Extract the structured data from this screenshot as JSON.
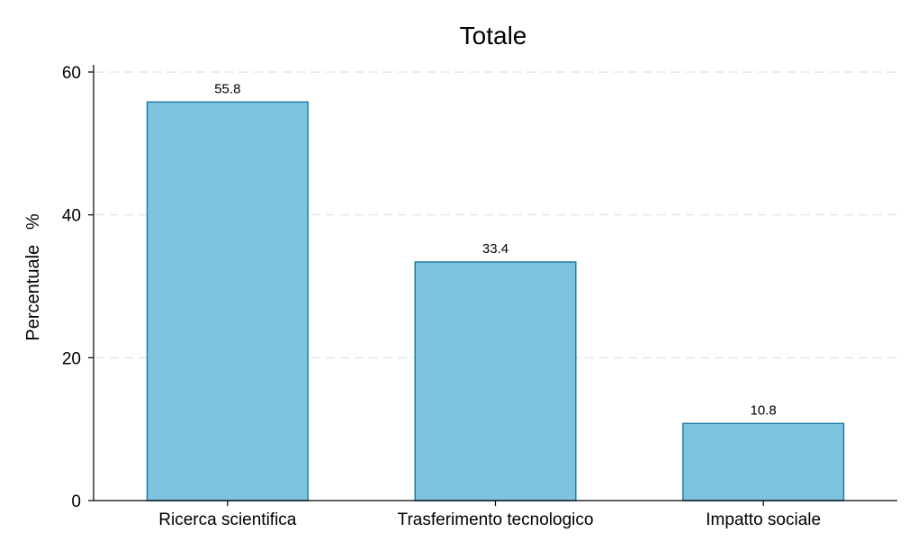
{
  "chart_data": {
    "type": "bar",
    "title": "Totale",
    "xlabel": "",
    "ylabel": "Percentuale   %",
    "categories": [
      "Ricerca scientifica",
      "Trasferimento tecnologico",
      "Impatto sociale"
    ],
    "values": [
      55.8,
      33.4,
      10.8
    ],
    "data_labels": [
      "55.8",
      "33.4",
      "10.8"
    ],
    "ylim": [
      0,
      60
    ],
    "yticks": [
      0,
      20,
      40,
      60
    ],
    "grid": true,
    "legend": "none",
    "colors": {
      "bar_fill": "#7fc4df",
      "bar_edge": "#1f7fa8",
      "grid": "#e6e6e6"
    }
  }
}
